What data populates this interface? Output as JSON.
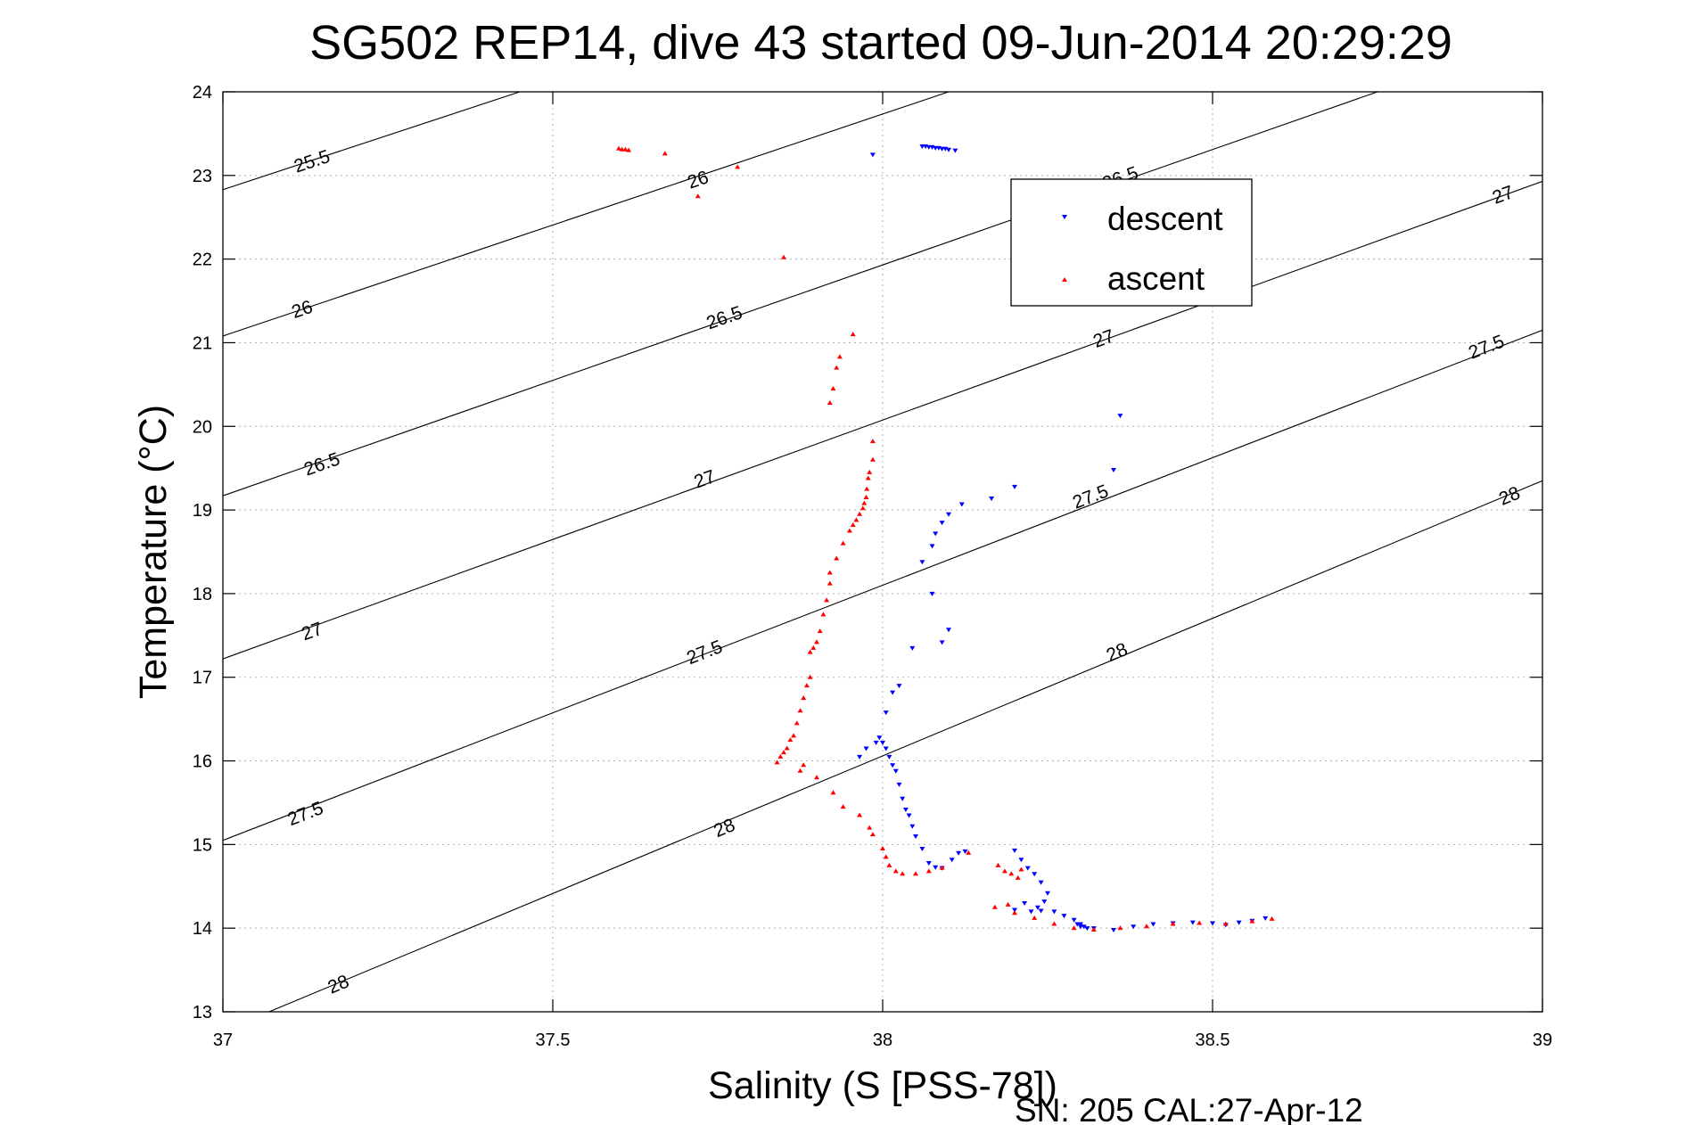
{
  "chart_data": {
    "type": "scatter",
    "title": "SG502 REP14, dive 43 started 09-Jun-2014 20:29:29",
    "xlabel": "Salinity (S [PSS-78])",
    "ylabel": "Temperature (°C)",
    "footer": "SN: 205  CAL:27-Apr-12",
    "xlim": [
      37,
      39
    ],
    "ylim": [
      13,
      24
    ],
    "xticks": [
      37,
      37.5,
      38,
      38.5,
      39
    ],
    "xtick_labels": [
      "37",
      "37.5",
      "38",
      "38.5",
      "39"
    ],
    "yticks": [
      13,
      14,
      15,
      16,
      17,
      18,
      19,
      20,
      21,
      22,
      23,
      24
    ],
    "ytick_labels": [
      "13",
      "14",
      "15",
      "16",
      "17",
      "18",
      "19",
      "20",
      "21",
      "22",
      "23",
      "24"
    ],
    "grid": true,
    "legend_position": "top-right",
    "colors": {
      "descent": "#0000ff",
      "ascent": "#ff0000",
      "contour": "#000000",
      "grid": "#b0b0b0"
    },
    "isopycnals": [
      {
        "sigma": 25.5,
        "points": [
          [
            37.0,
            22.83
          ],
          [
            37.45,
            24.0
          ]
        ],
        "labels": [
          {
            "text": "25.5",
            "x": 37.135,
            "y": 23.17
          }
        ]
      },
      {
        "sigma": 26,
        "points": [
          [
            37.0,
            21.08
          ],
          [
            38.1,
            24.0
          ]
        ],
        "labels": [
          {
            "text": "26",
            "x": 37.12,
            "y": 21.4
          },
          {
            "text": "26",
            "x": 37.72,
            "y": 22.95
          }
        ]
      },
      {
        "sigma": 26.5,
        "points": [
          [
            37.0,
            19.17
          ],
          [
            38.75,
            24.0
          ]
        ],
        "labels": [
          {
            "text": "26.5",
            "x": 37.15,
            "y": 19.55
          },
          {
            "text": "26.5",
            "x": 37.76,
            "y": 21.3
          },
          {
            "text": "26.5",
            "x": 38.36,
            "y": 22.97
          }
        ]
      },
      {
        "sigma": 27,
        "points": [
          [
            37.0,
            17.22
          ],
          [
            39.0,
            22.93
          ]
        ],
        "labels": [
          {
            "text": "27",
            "x": 37.135,
            "y": 17.55
          },
          {
            "text": "27",
            "x": 37.73,
            "y": 19.37
          },
          {
            "text": "27",
            "x": 38.335,
            "y": 21.05
          },
          {
            "text": "27",
            "x": 38.94,
            "y": 22.77
          }
        ]
      },
      {
        "sigma": 27.5,
        "points": [
          [
            37.0,
            15.05
          ],
          [
            39.0,
            21.15
          ]
        ],
        "labels": [
          {
            "text": "27.5",
            "x": 37.125,
            "y": 15.37
          },
          {
            "text": "27.5",
            "x": 37.73,
            "y": 17.3
          },
          {
            "text": "27.5",
            "x": 38.315,
            "y": 19.16
          },
          {
            "text": "27.5",
            "x": 38.915,
            "y": 20.95
          }
        ]
      },
      {
        "sigma": 28,
        "points": [
          [
            37.07,
            13.0
          ],
          [
            39.0,
            19.35
          ]
        ],
        "labels": [
          {
            "text": "28",
            "x": 37.175,
            "y": 13.33
          },
          {
            "text": "28",
            "x": 37.76,
            "y": 15.2
          },
          {
            "text": "28",
            "x": 38.355,
            "y": 17.3
          },
          {
            "text": "28",
            "x": 38.95,
            "y": 19.17
          }
        ]
      }
    ],
    "series": [
      {
        "name": "descent",
        "marker": "triangle-down",
        "x": [
          37.985,
          38.06,
          38.065,
          38.07,
          38.075,
          38.08,
          38.085,
          38.09,
          38.095,
          38.1,
          38.11,
          38.36,
          38.35,
          38.2,
          38.165,
          38.12,
          38.1,
          38.09,
          38.08,
          38.075,
          38.1,
          38.09,
          38.075,
          38.06,
          38.045,
          38.025,
          38.015,
          38.005,
          37.965,
          37.975,
          37.99,
          37.995,
          38.0,
          38.005,
          38.01,
          38.015,
          38.02,
          38.025,
          38.03,
          38.035,
          38.04,
          38.045,
          38.05,
          38.06,
          38.07,
          38.08,
          38.09,
          38.105,
          38.115,
          38.125,
          38.2,
          38.21,
          38.22,
          38.23,
          38.24,
          38.25,
          38.245,
          38.235,
          38.215,
          38.2,
          38.225,
          38.24,
          38.26,
          38.275,
          38.29,
          38.3,
          38.305,
          38.31,
          38.3,
          38.295,
          38.32,
          38.35,
          38.38,
          38.41,
          38.44,
          38.47,
          38.5,
          38.52,
          38.54,
          38.56,
          38.58
        ],
        "y": [
          23.25,
          23.35,
          23.35,
          23.34,
          23.34,
          23.33,
          23.33,
          23.32,
          23.32,
          23.31,
          23.3,
          20.13,
          19.48,
          19.28,
          19.14,
          19.07,
          18.95,
          18.85,
          18.72,
          18.57,
          17.57,
          17.42,
          18.0,
          18.38,
          17.35,
          16.9,
          16.82,
          16.58,
          16.05,
          16.15,
          16.22,
          16.28,
          16.22,
          16.15,
          16.05,
          15.95,
          15.88,
          15.72,
          15.55,
          15.42,
          15.35,
          15.22,
          15.1,
          14.95,
          14.78,
          14.73,
          14.72,
          14.82,
          14.9,
          14.92,
          14.93,
          14.82,
          14.72,
          14.65,
          14.55,
          14.42,
          14.32,
          14.25,
          14.3,
          14.22,
          14.2,
          14.21,
          14.2,
          14.15,
          14.1,
          14.05,
          14.02,
          14.0,
          14.02,
          14.05,
          14.0,
          13.98,
          14.02,
          14.05,
          14.06,
          14.07,
          14.06,
          14.04,
          14.07,
          14.09,
          14.12
        ]
      },
      {
        "name": "ascent",
        "marker": "triangle-up",
        "x": [
          37.6,
          37.605,
          37.61,
          37.615,
          37.67,
          37.72,
          37.78,
          37.85,
          37.955,
          37.935,
          37.93,
          37.925,
          37.92,
          37.985,
          37.985,
          37.98,
          37.978,
          37.976,
          37.975,
          37.972,
          37.97,
          37.965,
          37.96,
          37.955,
          37.95,
          37.94,
          37.93,
          37.92,
          37.92,
          37.915,
          37.91,
          37.905,
          37.9,
          37.895,
          37.89,
          37.89,
          37.885,
          37.88,
          37.875,
          37.87,
          37.865,
          37.86,
          37.855,
          37.85,
          37.845,
          37.84,
          37.88,
          37.875,
          37.9,
          37.925,
          37.94,
          37.965,
          37.98,
          37.985,
          38.0,
          38.005,
          38.01,
          38.02,
          38.03,
          38.05,
          38.07,
          38.09,
          38.13,
          38.175,
          38.185,
          38.195,
          38.21,
          38.205,
          38.17,
          38.19,
          38.2,
          38.23,
          38.26,
          38.29,
          38.32,
          38.36,
          38.4,
          38.44,
          38.48,
          38.52,
          38.56,
          38.59
        ],
        "y": [
          23.32,
          23.31,
          23.31,
          23.3,
          23.26,
          22.75,
          23.1,
          22.02,
          21.1,
          20.83,
          20.7,
          20.45,
          20.28,
          19.82,
          19.6,
          19.45,
          19.38,
          19.25,
          19.15,
          19.08,
          19.02,
          18.95,
          18.88,
          18.82,
          18.75,
          18.6,
          18.42,
          18.25,
          18.12,
          17.92,
          17.75,
          17.55,
          17.42,
          17.35,
          17.3,
          17.0,
          16.9,
          16.75,
          16.6,
          16.45,
          16.3,
          16.25,
          16.15,
          16.1,
          16.05,
          15.98,
          15.95,
          15.88,
          15.8,
          15.62,
          15.45,
          15.35,
          15.2,
          15.12,
          14.95,
          14.85,
          14.75,
          14.68,
          14.65,
          14.65,
          14.68,
          14.72,
          14.9,
          14.75,
          14.68,
          14.65,
          14.7,
          14.6,
          14.25,
          14.28,
          14.18,
          14.12,
          14.05,
          14.0,
          13.98,
          14.0,
          14.02,
          14.05,
          14.06,
          14.05,
          14.08,
          14.11
        ]
      }
    ]
  }
}
